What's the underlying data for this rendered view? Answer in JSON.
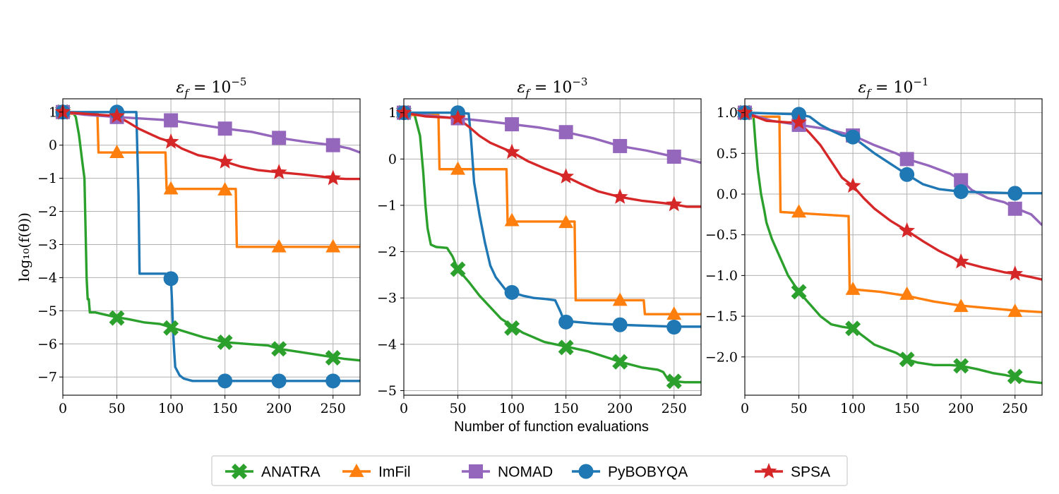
{
  "figure": {
    "xlabel": "Number of function evaluations",
    "ylabel": "log₁₀(f(θ))"
  },
  "colors": {
    "ANATRA": "#2ca02c",
    "ImFil": "#ff7f0e",
    "NOMAD": "#9467bd",
    "PyBOBYQA": "#1f77b4",
    "SPSA": "#d62728"
  },
  "legend": {
    "entries": [
      {
        "name": "ANATRA",
        "marker": "x-mark"
      },
      {
        "name": "ImFil",
        "marker": "triangle"
      },
      {
        "name": "NOMAD",
        "marker": "square"
      },
      {
        "name": "PyBOBYQA",
        "marker": "circle"
      },
      {
        "name": "SPSA",
        "marker": "star"
      }
    ]
  },
  "chart_data": [
    {
      "type": "line",
      "title_base": "ε",
      "title_sub": "f",
      "title_eq": "= 10",
      "title_exp": "−5",
      "xlim": [
        0,
        275
      ],
      "ylim": [
        -7.55,
        1.4
      ],
      "xticks": [
        0,
        50,
        100,
        150,
        200,
        250
      ],
      "yticks": [
        1,
        0,
        -1,
        -2,
        -3,
        -4,
        -5,
        -6,
        -7
      ],
      "ytick_labels": [
        "1",
        "0",
        "−1",
        "−2",
        "−3",
        "−4",
        "−5",
        "−6",
        "−7"
      ],
      "series": [
        {
          "name": "ANATRA",
          "x": [
            0,
            10,
            12,
            15,
            18,
            20,
            21,
            22,
            23,
            24,
            25,
            30,
            50,
            60,
            75,
            90,
            100,
            110,
            130,
            150,
            170,
            190,
            200,
            220,
            240,
            250,
            260,
            275
          ],
          "y": [
            1,
            0.95,
            0.85,
            0.3,
            -0.5,
            -1.0,
            -2.5,
            -4.0,
            -4.65,
            -4.65,
            -5.05,
            -5.05,
            -5.2,
            -5.25,
            -5.35,
            -5.4,
            -5.5,
            -5.6,
            -5.8,
            -5.95,
            -6.0,
            -6.05,
            -6.15,
            -6.25,
            -6.35,
            -6.4,
            -6.45,
            -6.5
          ],
          "markers_x": [
            0,
            50,
            100,
            150,
            200,
            250
          ],
          "markers_y": [
            1,
            -5.22,
            -5.52,
            -5.95,
            -6.15,
            -6.42
          ]
        },
        {
          "name": "ImFil",
          "x": [
            0,
            32,
            33,
            95,
            96,
            160,
            161,
            275
          ],
          "y": [
            0.95,
            0.95,
            -0.22,
            -0.22,
            -1.32,
            -1.32,
            -3.07,
            -3.07
          ],
          "markers_x": [
            0,
            50,
            100,
            150,
            200,
            250
          ],
          "markers_y": [
            1,
            -0.22,
            -1.32,
            -1.35,
            -3.07,
            -3.07
          ],
          "markers_y_note": ""
        },
        {
          "name": "NOMAD",
          "x": [
            0,
            20,
            50,
            75,
            100,
            120,
            150,
            175,
            200,
            225,
            250,
            265,
            275
          ],
          "y": [
            1,
            0.92,
            0.85,
            0.8,
            0.75,
            0.65,
            0.5,
            0.4,
            0.22,
            0.1,
            0.0,
            -0.1,
            -0.22
          ],
          "markers_x": [
            0,
            50,
            100,
            150,
            200,
            250
          ],
          "markers_y": [
            1,
            0.85,
            0.75,
            0.5,
            0.22,
            0.0
          ]
        },
        {
          "name": "PyBOBYQA",
          "x": [
            0,
            50,
            68,
            70,
            71,
            95,
            100,
            101,
            102,
            103,
            104,
            108,
            112,
            120,
            150,
            200,
            250,
            275
          ],
          "y": [
            1,
            1,
            1,
            -1.5,
            -3.88,
            -3.88,
            -4.03,
            -4.7,
            -5.6,
            -6.2,
            -6.7,
            -6.95,
            -7.05,
            -7.12,
            -7.12,
            -7.12,
            -7.12,
            -7.12
          ],
          "markers_x": [
            0,
            50,
            100,
            150,
            200,
            250
          ],
          "markers_y": [
            1,
            1,
            -4.03,
            -7.12,
            -7.12,
            -7.12
          ]
        },
        {
          "name": "SPSA",
          "x": [
            0,
            20,
            50,
            60,
            70,
            80,
            90,
            100,
            110,
            125,
            140,
            150,
            165,
            180,
            200,
            220,
            240,
            250,
            262,
            275
          ],
          "y": [
            1,
            0.95,
            0.88,
            0.7,
            0.5,
            0.35,
            0.2,
            0.1,
            -0.1,
            -0.3,
            -0.4,
            -0.5,
            -0.65,
            -0.75,
            -0.82,
            -0.88,
            -0.95,
            -1.0,
            -1.02,
            -1.02
          ],
          "markers_x": [
            0,
            50,
            100,
            150,
            200,
            250
          ],
          "markers_y": [
            1,
            0.88,
            0.1,
            -0.5,
            -0.82,
            -1.0
          ]
        }
      ]
    },
    {
      "type": "line",
      "title_base": "ε",
      "title_sub": "f",
      "title_eq": "= 10",
      "title_exp": "−3",
      "xlim": [
        0,
        275
      ],
      "ylim": [
        -5.1,
        1.3
      ],
      "xticks": [
        0,
        50,
        100,
        150,
        200,
        250
      ],
      "yticks": [
        1,
        0,
        -1,
        -2,
        -3,
        -4,
        -5
      ],
      "ytick_labels": [
        "1",
        "0",
        "−1",
        "−2",
        "−3",
        "−4",
        "−5"
      ],
      "series": [
        {
          "name": "ANATRA",
          "x": [
            0,
            10,
            15,
            18,
            20,
            22,
            25,
            30,
            40,
            45,
            50,
            60,
            70,
            80,
            90,
            100,
            110,
            120,
            130,
            140,
            150,
            170,
            190,
            200,
            220,
            235,
            240,
            245,
            250,
            260,
            275
          ],
          "y": [
            1,
            0.95,
            0.5,
            -0.3,
            -1.0,
            -1.5,
            -1.85,
            -1.9,
            -1.92,
            -2.1,
            -2.38,
            -2.65,
            -2.95,
            -3.2,
            -3.45,
            -3.6,
            -3.75,
            -3.85,
            -3.95,
            -4.0,
            -4.05,
            -4.15,
            -4.3,
            -4.38,
            -4.5,
            -4.55,
            -4.6,
            -4.78,
            -4.8,
            -4.82,
            -4.82
          ],
          "markers_x": [
            0,
            50,
            100,
            150,
            200,
            250
          ],
          "markers_y": [
            1,
            -2.38,
            -3.65,
            -4.07,
            -4.38,
            -4.8
          ]
        },
        {
          "name": "ImFil",
          "x": [
            0,
            32,
            33,
            95,
            96,
            158,
            159,
            222,
            223,
            275
          ],
          "y": [
            0.95,
            0.95,
            -0.22,
            -0.22,
            -1.35,
            -1.35,
            -3.05,
            -3.05,
            -3.35,
            -3.35
          ],
          "markers_x": [
            0,
            50,
            100,
            150,
            200,
            250
          ],
          "markers_y": [
            1,
            -0.22,
            -1.33,
            -1.37,
            -3.05,
            -3.35
          ]
        },
        {
          "name": "NOMAD",
          "x": [
            0,
            30,
            50,
            75,
            100,
            125,
            150,
            175,
            200,
            225,
            250,
            265,
            275
          ],
          "y": [
            1,
            0.92,
            0.88,
            0.82,
            0.75,
            0.68,
            0.58,
            0.45,
            0.28,
            0.18,
            0.05,
            -0.02,
            -0.08
          ],
          "markers_x": [
            0,
            50,
            100,
            150,
            200,
            250
          ],
          "markers_y": [
            1,
            0.88,
            0.75,
            0.58,
            0.28,
            0.05
          ]
        },
        {
          "name": "PyBOBYQA",
          "x": [
            0,
            50,
            60,
            62,
            65,
            70,
            75,
            80,
            85,
            90,
            95,
            100,
            110,
            120,
            130,
            140,
            145,
            148,
            150,
            175,
            200,
            225,
            250,
            275
          ],
          "y": [
            1,
            1,
            0.98,
            0.5,
            -0.5,
            -1.2,
            -1.8,
            -2.3,
            -2.55,
            -2.7,
            -2.85,
            -2.88,
            -2.95,
            -3.0,
            -3.02,
            -3.05,
            -3.3,
            -3.48,
            -3.5,
            -3.55,
            -3.58,
            -3.6,
            -3.62,
            -3.62
          ],
          "markers_x": [
            0,
            50,
            100,
            150,
            200,
            250
          ],
          "markers_y": [
            1,
            1,
            -2.88,
            -3.52,
            -3.58,
            -3.63
          ]
        },
        {
          "name": "SPSA",
          "x": [
            0,
            20,
            50,
            60,
            70,
            80,
            90,
            100,
            115,
            130,
            150,
            165,
            180,
            200,
            220,
            240,
            250,
            262,
            275
          ],
          "y": [
            1,
            0.92,
            0.88,
            0.7,
            0.5,
            0.35,
            0.25,
            0.15,
            -0.05,
            -0.2,
            -0.38,
            -0.55,
            -0.7,
            -0.82,
            -0.9,
            -0.95,
            -0.98,
            -1.03,
            -1.03
          ],
          "markers_x": [
            0,
            50,
            100,
            150,
            200,
            250
          ],
          "markers_y": [
            1,
            0.88,
            0.15,
            -0.38,
            -0.82,
            -0.98
          ]
        }
      ]
    },
    {
      "type": "line",
      "title_base": "ε",
      "title_sub": "f",
      "title_eq": "= 10",
      "title_exp": "−1",
      "xlim": [
        0,
        275
      ],
      "ylim": [
        -2.47,
        1.17
      ],
      "xticks": [
        0,
        50,
        100,
        150,
        200,
        250
      ],
      "yticks": [
        1.0,
        0.5,
        0.0,
        -0.5,
        -1.0,
        -1.5,
        -2.0
      ],
      "ytick_labels": [
        "1.0",
        "0.5",
        "0.0",
        "−0.5",
        "−1.0",
        "−1.5",
        "−2.0"
      ],
      "series": [
        {
          "name": "ANATRA",
          "x": [
            0,
            8,
            10,
            12,
            15,
            18,
            20,
            25,
            30,
            35,
            40,
            45,
            50,
            60,
            70,
            80,
            90,
            100,
            110,
            120,
            130,
            140,
            150,
            160,
            175,
            190,
            200,
            215,
            230,
            240,
            250,
            260,
            275
          ],
          "y": [
            1,
            0.95,
            0.6,
            0.3,
            0.0,
            -0.2,
            -0.35,
            -0.55,
            -0.7,
            -0.85,
            -1.0,
            -1.1,
            -1.2,
            -1.35,
            -1.5,
            -1.6,
            -1.63,
            -1.65,
            -1.75,
            -1.85,
            -1.9,
            -1.95,
            -2.03,
            -2.07,
            -2.1,
            -2.1,
            -2.11,
            -2.15,
            -2.2,
            -2.22,
            -2.25,
            -2.3,
            -2.32
          ],
          "markers_x": [
            0,
            50,
            100,
            150,
            200,
            250
          ],
          "markers_y": [
            1,
            -1.2,
            -1.65,
            -2.03,
            -2.11,
            -2.24
          ]
        },
        {
          "name": "ImFil",
          "x": [
            0,
            32,
            33,
            95,
            96,
            97,
            100,
            125,
            150,
            175,
            200,
            225,
            250,
            275
          ],
          "y": [
            0.95,
            0.95,
            -0.22,
            -0.27,
            -0.27,
            -1.17,
            -1.17,
            -1.2,
            -1.25,
            -1.32,
            -1.37,
            -1.4,
            -1.43,
            -1.45
          ],
          "markers_x": [
            0,
            50,
            100,
            150,
            200,
            250
          ],
          "markers_y": [
            1,
            -0.22,
            -1.17,
            -1.23,
            -1.38,
            -1.44
          ]
        },
        {
          "name": "NOMAD",
          "x": [
            0,
            25,
            50,
            75,
            100,
            120,
            140,
            150,
            170,
            190,
            200,
            210,
            225,
            240,
            250,
            265,
            275
          ],
          "y": [
            1,
            0.9,
            0.85,
            0.8,
            0.72,
            0.6,
            0.5,
            0.43,
            0.35,
            0.25,
            0.17,
            0.05,
            -0.05,
            -0.1,
            -0.17,
            -0.25,
            -0.38
          ],
          "markers_x": [
            0,
            50,
            100,
            150,
            200,
            250
          ],
          "markers_y": [
            1,
            0.85,
            0.72,
            0.43,
            0.17,
            -0.18
          ]
        },
        {
          "name": "PyBOBYQA",
          "x": [
            0,
            50,
            60,
            70,
            80,
            90,
            100,
            110,
            120,
            135,
            150,
            165,
            180,
            200,
            225,
            250,
            275
          ],
          "y": [
            1,
            0.98,
            0.95,
            0.85,
            0.78,
            0.72,
            0.7,
            0.6,
            0.5,
            0.37,
            0.24,
            0.12,
            0.06,
            0.03,
            0.02,
            0.01,
            0.01
          ],
          "markers_x": [
            0,
            50,
            100,
            150,
            200,
            250
          ],
          "markers_y": [
            1,
            0.98,
            0.7,
            0.24,
            0.03,
            0.01
          ]
        },
        {
          "name": "SPSA",
          "x": [
            0,
            20,
            40,
            50,
            60,
            70,
            80,
            90,
            100,
            110,
            120,
            135,
            150,
            165,
            180,
            200,
            220,
            240,
            250,
            265,
            275
          ],
          "y": [
            1,
            0.9,
            0.88,
            0.88,
            0.75,
            0.6,
            0.4,
            0.2,
            0.1,
            -0.05,
            -0.18,
            -0.33,
            -0.45,
            -0.58,
            -0.7,
            -0.83,
            -0.9,
            -0.96,
            -0.98,
            -1.02,
            -1.05
          ],
          "markers_x": [
            0,
            50,
            100,
            150,
            200,
            250
          ],
          "markers_y": [
            1,
            0.88,
            0.1,
            -0.45,
            -0.83,
            -0.98
          ]
        }
      ]
    }
  ]
}
